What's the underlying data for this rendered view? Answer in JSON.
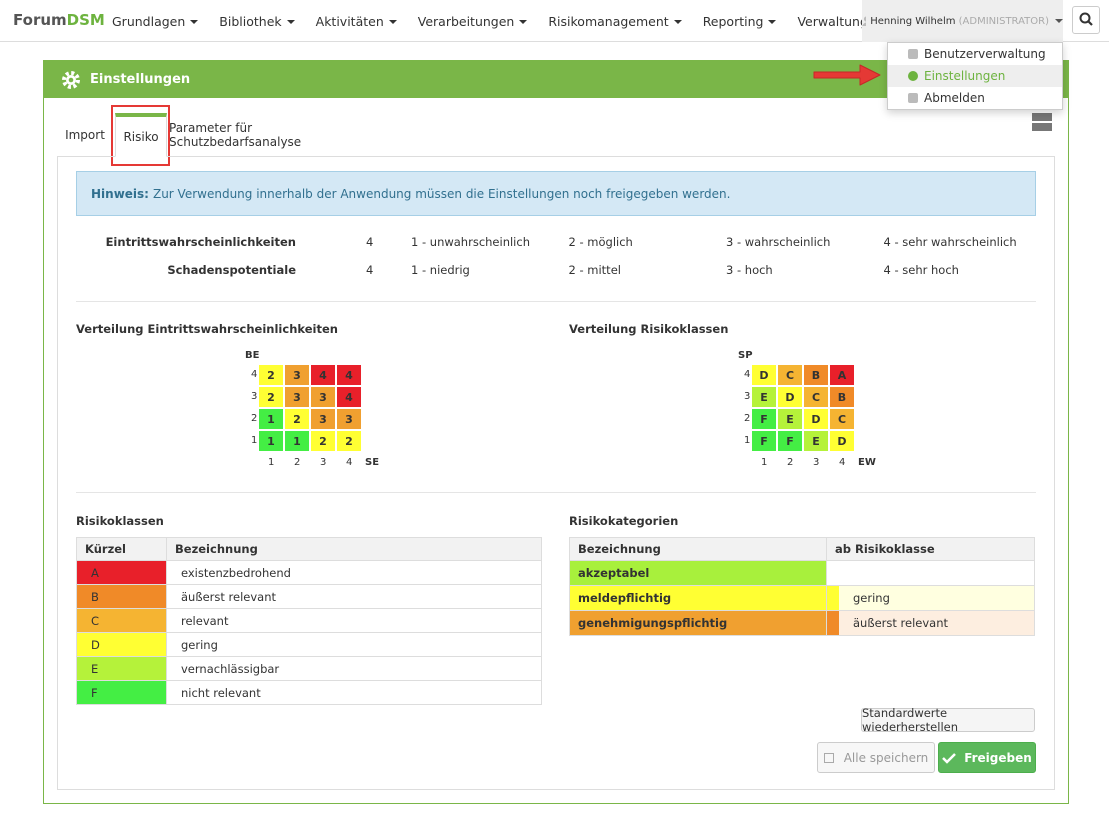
{
  "navbar": {
    "brand_a": "Forum",
    "brand_b": "DSM",
    "menus": [
      "Grundlagen",
      "Bibliothek",
      "Aktivitäten",
      "Verarbeitungen",
      "Risikomanagement",
      "Reporting",
      "Verwaltung"
    ],
    "user": "Henning Wilhelm",
    "role": "(ADMINISTRATOR)"
  },
  "dropdown": [
    "Benutzerverwaltung",
    "Einstellungen",
    "Abmelden"
  ],
  "panel": {
    "title": "Einstellungen"
  },
  "tabs": [
    "Import",
    "Risiko",
    "Parameter für Schutzbedarfsanalyse"
  ],
  "notice": {
    "label": "Hinweis:",
    "text": "Zur Verwendung innerhalb der Anwendung müssen die Einstellungen noch freigegeben werden."
  },
  "scales": [
    {
      "label": "Eintrittswahrscheinlichkeiten",
      "count": 4,
      "levels": [
        "1 - unwahrscheinlich",
        "2 - möglich",
        "3 - wahrscheinlich",
        "4 - sehr wahrscheinlich"
      ]
    },
    {
      "label": "Schadenspotentiale",
      "count": 4,
      "levels": [
        "1 - niedrig",
        "2 - mittel",
        "3 - hoch",
        "4 - sehr hoch"
      ]
    }
  ],
  "matrices": [
    {
      "title": "Verteilung Eintrittswahrscheinlichkeiten",
      "y_label": "BE",
      "x_label": "SE",
      "columns": [
        "1",
        "2",
        "3",
        "4"
      ],
      "rows": [
        {
          "label": "4",
          "cells": [
            "2",
            "3",
            "4",
            "4"
          ],
          "colors": [
            "#ffff33",
            "#f0a030",
            "#e8202a",
            "#e8202a"
          ]
        },
        {
          "label": "3",
          "cells": [
            "2",
            "3",
            "3",
            "4"
          ],
          "colors": [
            "#ffff33",
            "#f0a030",
            "#f0a030",
            "#e8202a"
          ]
        },
        {
          "label": "2",
          "cells": [
            "1",
            "2",
            "3",
            "3"
          ],
          "colors": [
            "#44ee44",
            "#ffff33",
            "#f0a030",
            "#f0a030"
          ]
        },
        {
          "label": "1",
          "cells": [
            "1",
            "1",
            "2",
            "2"
          ],
          "colors": [
            "#44ee44",
            "#44ee44",
            "#ffff33",
            "#ffff33"
          ]
        }
      ]
    },
    {
      "title": "Verteilung Risikoklassen",
      "y_label": "SP",
      "x_label": "EW",
      "columns": [
        "1",
        "2",
        "3",
        "4"
      ],
      "rows": [
        {
          "label": "4",
          "cells": [
            "D",
            "C",
            "B",
            "A"
          ],
          "colors": [
            "#ffff33",
            "#f5b432",
            "#f08a28",
            "#e8202a"
          ]
        },
        {
          "label": "3",
          "cells": [
            "E",
            "D",
            "C",
            "B"
          ],
          "colors": [
            "#b5f23a",
            "#ffff33",
            "#f5b432",
            "#f08a28"
          ]
        },
        {
          "label": "2",
          "cells": [
            "F",
            "E",
            "D",
            "C"
          ],
          "colors": [
            "#44ee44",
            "#b5f23a",
            "#ffff33",
            "#f5b432"
          ]
        },
        {
          "label": "1",
          "cells": [
            "F",
            "F",
            "E",
            "D"
          ],
          "colors": [
            "#44ee44",
            "#44ee44",
            "#b5f23a",
            "#ffff33"
          ]
        }
      ]
    }
  ],
  "risk_classes": {
    "title": "Risikoklassen",
    "headers": [
      "Kürzel",
      "Bezeichnung"
    ],
    "rows": [
      {
        "code": "A",
        "name": "existenzbedrohend",
        "color": "#e8202a"
      },
      {
        "code": "B",
        "name": "äußerst relevant",
        "color": "#f08a28"
      },
      {
        "code": "C",
        "name": "relevant",
        "color": "#f5b432"
      },
      {
        "code": "D",
        "name": "gering",
        "color": "#ffff33"
      },
      {
        "code": "E",
        "name": "vernachlässigbar",
        "color": "#b5f23a"
      },
      {
        "code": "F",
        "name": "nicht relevant",
        "color": "#44ee44"
      }
    ]
  },
  "risk_categories": {
    "title": "Risikokategorien",
    "headers": [
      "Bezeichnung",
      "ab Risikoklasse"
    ],
    "rows": [
      {
        "name": "akzeptabel",
        "color": "#a8f03c"
      },
      {
        "name": "meldepflichtig",
        "color": "#ffff33",
        "class": "gering",
        "class_color": "#ffff33",
        "class_bg": "#ffffe0"
      },
      {
        "name": "genehmigungspflichtig",
        "color": "#f0a030",
        "class": "äußerst relevant",
        "class_color": "#f08a28",
        "class_bg": "#fdeee0"
      }
    ]
  },
  "buttons": {
    "restore": "Standardwerte wiederherstellen",
    "save": "Alle speichern",
    "release": "Freigeben"
  }
}
